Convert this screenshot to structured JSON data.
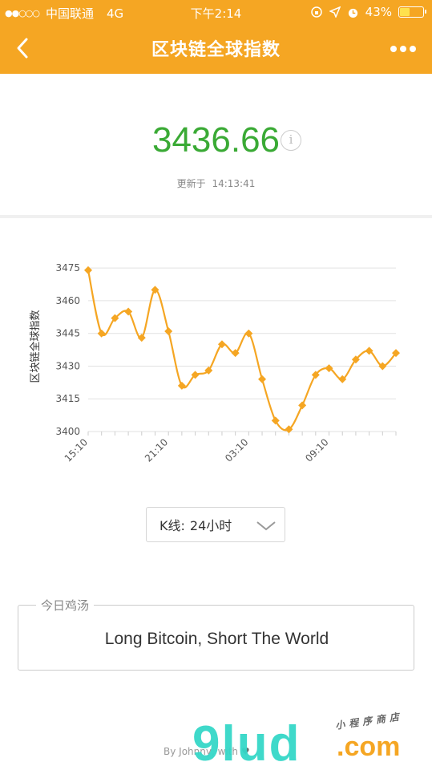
{
  "status_bar": {
    "signal_dots": "●●○○○",
    "carrier": "中国联通",
    "network": "4G",
    "time": "下午2:14",
    "battery_percent": "43%",
    "battery_level": 0.43
  },
  "nav": {
    "title": "区块链全球指数",
    "back_icon": "chevron-left-icon",
    "more_icon": "more-dots-icon"
  },
  "index": {
    "value": "3436.66",
    "value_color": "#3aaa35",
    "updated_label": "更新于",
    "updated_time": "14:13:41"
  },
  "chart_data": {
    "type": "line",
    "ylabel": "区块链全球指数",
    "xlabel": "",
    "ylim": [
      3400,
      3478
    ],
    "y_ticks": [
      "3475",
      "3460",
      "3445",
      "3430",
      "3415",
      "3400"
    ],
    "x_tick_labels": [
      "15:10",
      "21:10",
      "03:10",
      "09:10"
    ],
    "color": "#f5a623",
    "grid": true,
    "values": [
      3474,
      3445,
      3452,
      3455,
      3443,
      3465,
      3446,
      3421,
      3426,
      3428,
      3440,
      3436,
      3445,
      3424,
      3405,
      3401,
      3412,
      3426,
      3429,
      3424,
      3433,
      3437,
      3430,
      3436
    ]
  },
  "kline": {
    "label": "K线:",
    "value": "24小时",
    "chevron_icon": "chevron-down-icon"
  },
  "quote": {
    "legend": "今日鸡汤",
    "text": "Long Bitcoin, Short The World"
  },
  "footer": {
    "text": "By Johnny, with",
    "heart_icon": "heart-icon"
  },
  "watermark": {
    "main": "9lud",
    "domain": ".com",
    "sub": "小程序商店"
  }
}
